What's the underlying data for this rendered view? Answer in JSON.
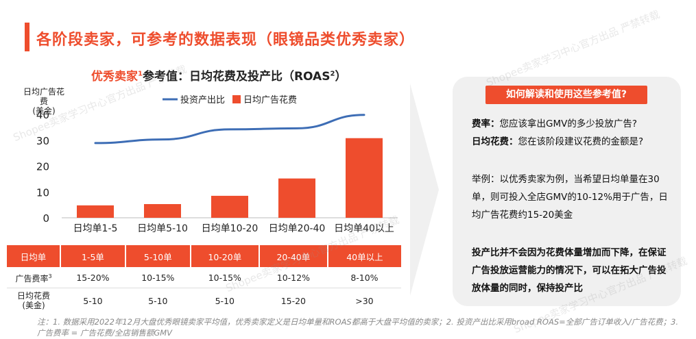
{
  "page": {
    "title": "各阶段卖家，可参考的数据表现（眼镜品类优秀卖家）"
  },
  "chart_title": {
    "highlight": "优秀卖家",
    "sup": "1",
    "rest": "参考值：日均花费及投产比（ROAS",
    "rest_sup": "2",
    "end": "）"
  },
  "chart_data": {
    "type": "bar",
    "ylabel": "日均广告花费\n(美金)",
    "ylabel_line1": "日均广告花费",
    "ylabel_line2": "(美金)",
    "ylim": [
      0,
      40
    ],
    "yticks": [
      0,
      10,
      20,
      30,
      40
    ],
    "categories": [
      "日均单1-5",
      "日均单5-10",
      "日均单10-20",
      "日均单20-40",
      "日均单40以上"
    ],
    "series": [
      {
        "name": "日均广告花费",
        "type": "bar",
        "color": "#ee4d2d",
        "values": [
          4.8,
          5.3,
          8.5,
          15.2,
          30.8
        ]
      },
      {
        "name": "投资产出比",
        "type": "line",
        "color": "#3d6db5",
        "values": [
          28.9,
          30.3,
          34.2,
          34.6,
          39.8
        ]
      }
    ],
    "legend_position": "top",
    "grid": false
  },
  "table": {
    "header": [
      "日均单",
      "1-5单",
      "5-10单",
      "10-20单",
      "20-40单",
      "40单以上"
    ],
    "rows": [
      {
        "label": "广告费率",
        "sup": "3",
        "values": [
          "15-20%",
          "10-15%",
          "10-15%",
          "10-12%",
          "8-10%"
        ]
      },
      {
        "label_line1": "日均花费",
        "label_line2": "(美金)",
        "values": [
          "5-10",
          "5-10",
          "5-10",
          "15-20",
          ">30"
        ]
      }
    ]
  },
  "panel": {
    "header": "如何解读和使用这些参考值?",
    "line1_bold": "费率：",
    "line1_text": "您应该拿出GMV的多少投放广告?",
    "line2_bold": "日均花费：",
    "line2_text": "您在该阶段建议花费的金额是?",
    "example": "举例：以优秀卖家为例，当希望日均单量在30单，则可投入全店GMV的10-12%用于广告，日均广告花费约15-20美金",
    "conclusion": "投产比并不会因为花费体量增加而下降，在保证广告投放运营能力的情况下，可以在拓大广告投放体量的同时，保持投产比"
  },
  "footnote": "注：1. 数据采用2022年12月大盘优秀眼镜卖家平均值，优秀卖家定义是日均单量和ROAS都高于大盘平均值的卖家；2. 投资产出比采用broad ROAS=全部广告订单收入/广告花费；3. 广告费率 = 广告花费/全店销售额GMV",
  "watermark": "Shopee卖家学习中心官方出品 严禁转载",
  "colors": {
    "accent": "#ee4d2d",
    "line": "#3d6db5",
    "panel_bg": "#f0f0f0"
  }
}
